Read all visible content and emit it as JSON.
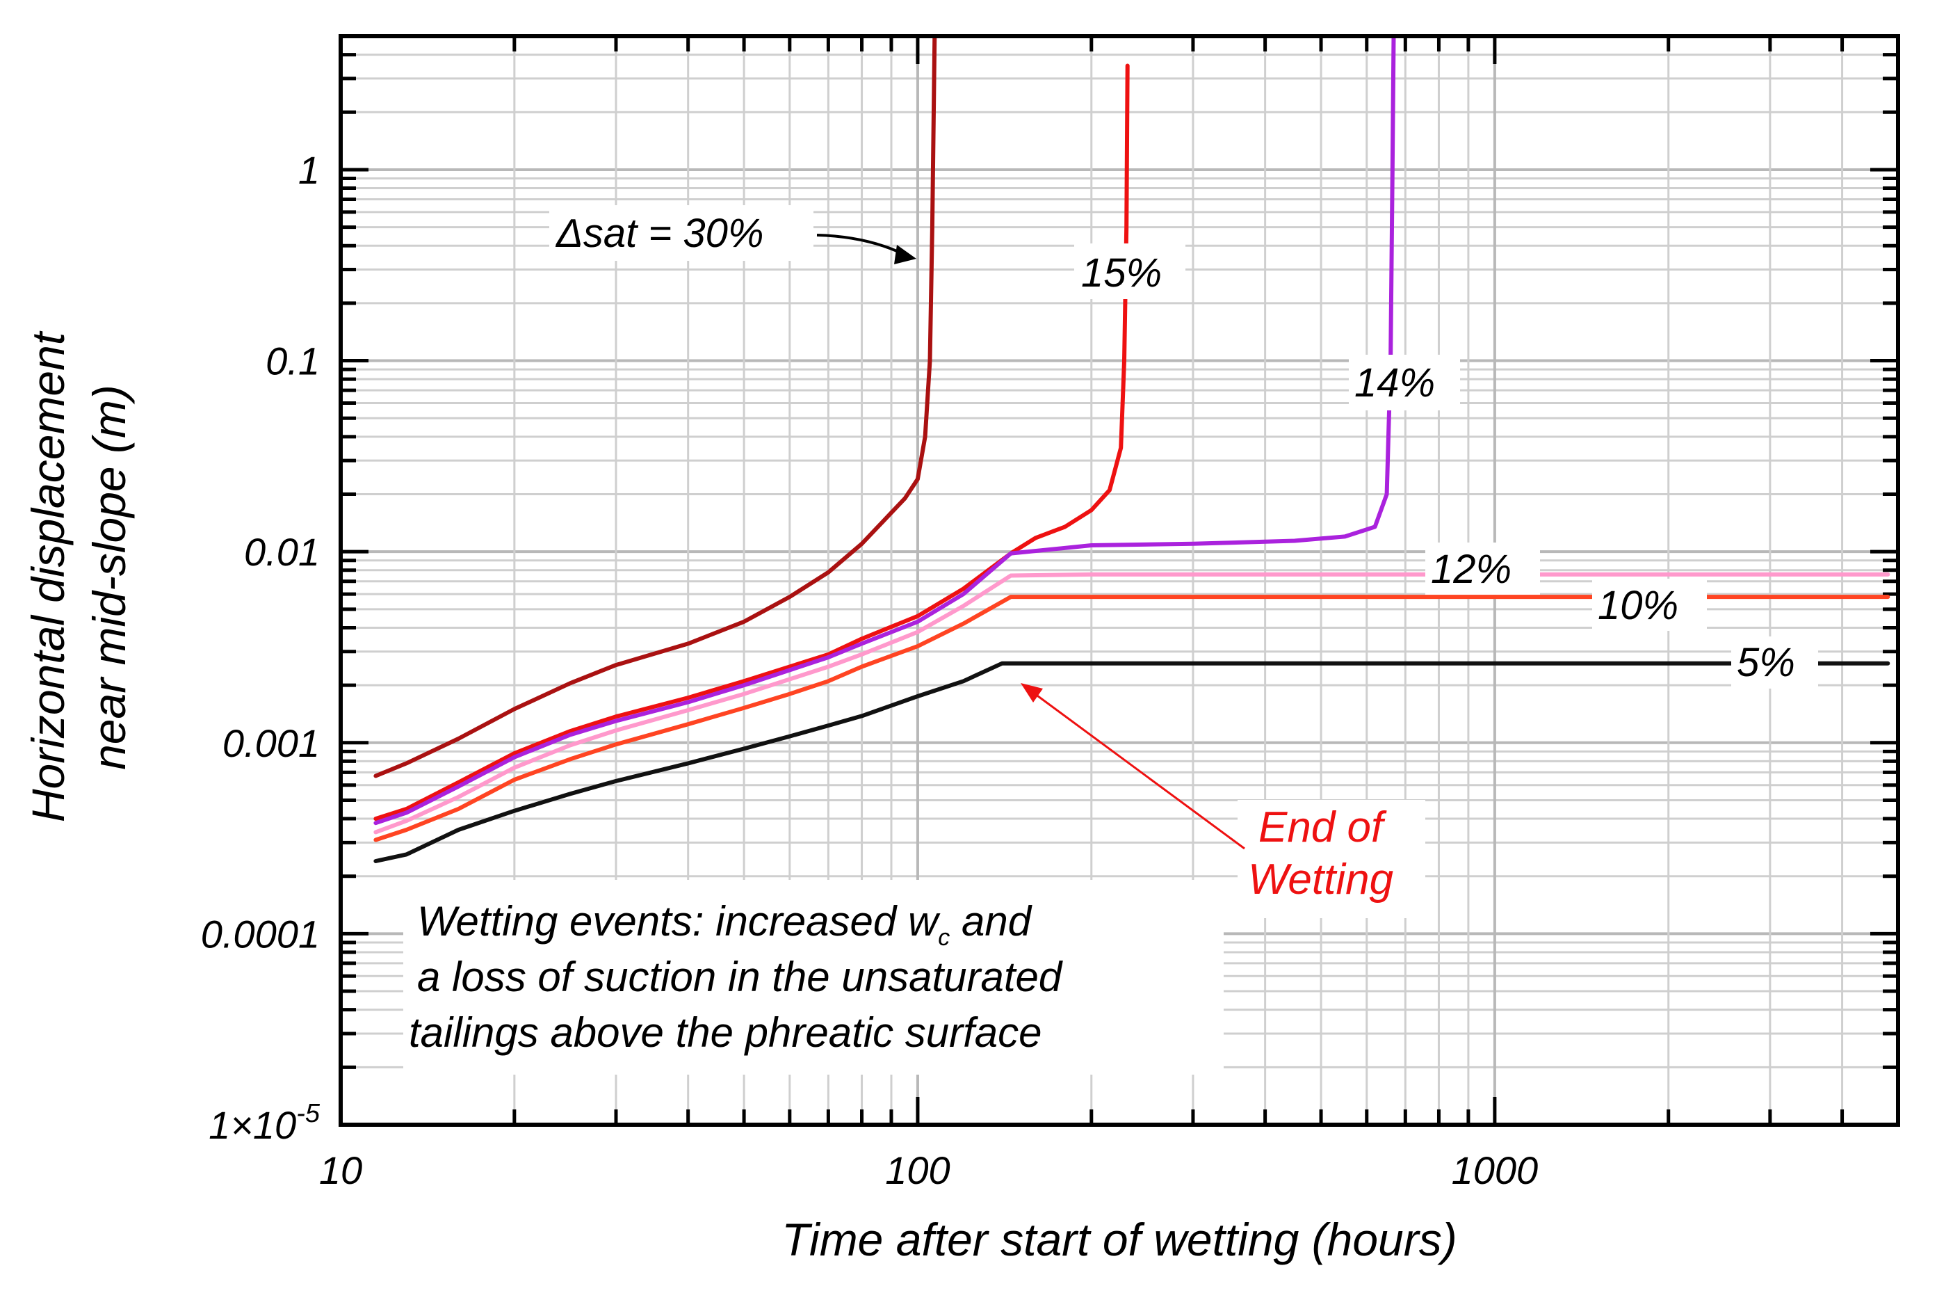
{
  "chart_data": {
    "type": "line",
    "x_scale": "log",
    "y_scale": "log",
    "xlabel": "Time after start of wetting (hours)",
    "ylabel_line1": "Horizontal displacement",
    "ylabel_line2": "near mid-slope (m)",
    "xlim": [
      10,
      5000
    ],
    "ylim": [
      1e-05,
      5
    ],
    "grid": true,
    "x_ticks": [
      {
        "value": 10,
        "label": "10"
      },
      {
        "value": 100,
        "label": "100"
      },
      {
        "value": 1000,
        "label": "1000"
      }
    ],
    "y_ticks": [
      {
        "value": 1,
        "label": "1"
      },
      {
        "value": 0.1,
        "label": "0.1"
      },
      {
        "value": 0.01,
        "label": "0.01"
      },
      {
        "value": 0.001,
        "label": "0.001"
      },
      {
        "value": 0.0001,
        "label": "0.0001"
      },
      {
        "value": 1e-05,
        "label_main": "1×10",
        "label_exp": "-5"
      }
    ],
    "series": [
      {
        "name": "5%",
        "label": "5%",
        "color": "#111111",
        "points": [
          [
            11.5,
            0.00024
          ],
          [
            13,
            0.00026
          ],
          [
            16,
            0.00035
          ],
          [
            20,
            0.00044
          ],
          [
            25,
            0.00054
          ],
          [
            30,
            0.00063
          ],
          [
            40,
            0.00078
          ],
          [
            50,
            0.00093
          ],
          [
            60,
            0.00108
          ],
          [
            70,
            0.00123
          ],
          [
            80,
            0.00138
          ],
          [
            100,
            0.00175
          ],
          [
            120,
            0.0021
          ],
          [
            140,
            0.0026
          ],
          [
            200,
            0.0026
          ],
          [
            1000,
            0.0026
          ],
          [
            4800,
            0.0026
          ]
        ]
      },
      {
        "name": "10%",
        "label": "10%",
        "color": "#ff4422",
        "points": [
          [
            11.5,
            0.00031
          ],
          [
            13,
            0.00035
          ],
          [
            16,
            0.00045
          ],
          [
            20,
            0.00064
          ],
          [
            25,
            0.00082
          ],
          [
            30,
            0.00098
          ],
          [
            40,
            0.00125
          ],
          [
            50,
            0.00152
          ],
          [
            60,
            0.0018
          ],
          [
            70,
            0.0021
          ],
          [
            80,
            0.0025
          ],
          [
            100,
            0.0032
          ],
          [
            120,
            0.0042
          ],
          [
            145,
            0.0058
          ],
          [
            200,
            0.0058
          ],
          [
            1000,
            0.0058
          ],
          [
            4800,
            0.0058
          ]
        ]
      },
      {
        "name": "12%",
        "label": "12%",
        "color": "#ff99cc",
        "points": [
          [
            11.5,
            0.00034
          ],
          [
            13,
            0.00039
          ],
          [
            16,
            0.00052
          ],
          [
            20,
            0.00074
          ],
          [
            25,
            0.00097
          ],
          [
            30,
            0.00116
          ],
          [
            40,
            0.00148
          ],
          [
            50,
            0.0018
          ],
          [
            60,
            0.00215
          ],
          [
            70,
            0.0025
          ],
          [
            80,
            0.0029
          ],
          [
            100,
            0.0038
          ],
          [
            120,
            0.0052
          ],
          [
            145,
            0.0075
          ],
          [
            200,
            0.0076
          ],
          [
            1000,
            0.0076
          ],
          [
            4800,
            0.0076
          ]
        ]
      },
      {
        "name": "15%",
        "label": "15%",
        "color": "#ee1111",
        "points": [
          [
            11.5,
            0.0004
          ],
          [
            13,
            0.00045
          ],
          [
            16,
            0.00062
          ],
          [
            20,
            0.00088
          ],
          [
            25,
            0.00115
          ],
          [
            30,
            0.00137
          ],
          [
            40,
            0.00172
          ],
          [
            50,
            0.0021
          ],
          [
            60,
            0.0025
          ],
          [
            70,
            0.0029
          ],
          [
            80,
            0.0035
          ],
          [
            100,
            0.0046
          ],
          [
            120,
            0.0064
          ],
          [
            145,
            0.0098
          ],
          [
            160,
            0.0118
          ],
          [
            180,
            0.0135
          ],
          [
            200,
            0.0165
          ],
          [
            215,
            0.021
          ],
          [
            225,
            0.035
          ],
          [
            228,
            0.1
          ],
          [
            230,
            0.5
          ],
          [
            231,
            3.5
          ]
        ]
      },
      {
        "name": "14%",
        "label": "14%",
        "color": "#aa22dd",
        "points": [
          [
            11.5,
            0.00038
          ],
          [
            13,
            0.00043
          ],
          [
            16,
            0.00059
          ],
          [
            20,
            0.00084
          ],
          [
            25,
            0.0011
          ],
          [
            30,
            0.0013
          ],
          [
            40,
            0.00163
          ],
          [
            50,
            0.002
          ],
          [
            60,
            0.0024
          ],
          [
            70,
            0.0028
          ],
          [
            80,
            0.0033
          ],
          [
            100,
            0.0043
          ],
          [
            120,
            0.006
          ],
          [
            145,
            0.0098
          ],
          [
            200,
            0.0108
          ],
          [
            300,
            0.011
          ],
          [
            450,
            0.0114
          ],
          [
            550,
            0.012
          ],
          [
            620,
            0.0135
          ],
          [
            650,
            0.02
          ],
          [
            660,
            0.1
          ],
          [
            665,
            1
          ],
          [
            668,
            5
          ]
        ]
      },
      {
        "name": "30%",
        "label_main": "Δsat = 30%",
        "color": "#aa1111",
        "points": [
          [
            11.5,
            0.00067
          ],
          [
            13,
            0.00078
          ],
          [
            16,
            0.00105
          ],
          [
            20,
            0.0015
          ],
          [
            25,
            0.00205
          ],
          [
            30,
            0.00255
          ],
          [
            40,
            0.0033
          ],
          [
            50,
            0.0043
          ],
          [
            60,
            0.0058
          ],
          [
            70,
            0.0078
          ],
          [
            80,
            0.011
          ],
          [
            90,
            0.016
          ],
          [
            95,
            0.019
          ],
          [
            100,
            0.024
          ],
          [
            103,
            0.04
          ],
          [
            105,
            0.1
          ],
          [
            106,
            0.5
          ],
          [
            107,
            5
          ]
        ]
      }
    ],
    "end_of_wetting": {
      "line1": "End of",
      "line2": "Wetting",
      "color": "#ee1111",
      "x": 145,
      "y": 0.0026
    },
    "note": {
      "line1": "Wetting events: increased w",
      "line1_sub": "c",
      "line1_end": " and",
      "line2": "a loss of suction in the unsaturated",
      "line3": "tailings above the phreatic surface"
    }
  }
}
